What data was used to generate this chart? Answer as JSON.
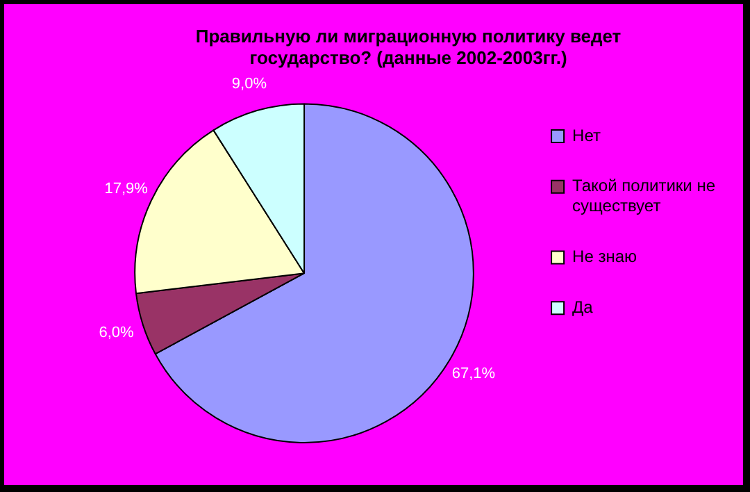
{
  "chart_data": {
    "type": "pie",
    "title": "Правильную ли миграционную политику ведет государство? (данные 2002-2003гг.)",
    "categories": [
      "Нет",
      "Такой политики не существует",
      "Не знаю",
      "Да"
    ],
    "values": [
      67.1,
      6.0,
      17.9,
      9.0
    ],
    "colors": [
      "#9999ff",
      "#993366",
      "#ffffcc",
      "#ccffff"
    ],
    "value_labels": [
      "67,1%",
      "6,0%",
      "17,9%",
      "9,0%"
    ],
    "legend": "right"
  }
}
